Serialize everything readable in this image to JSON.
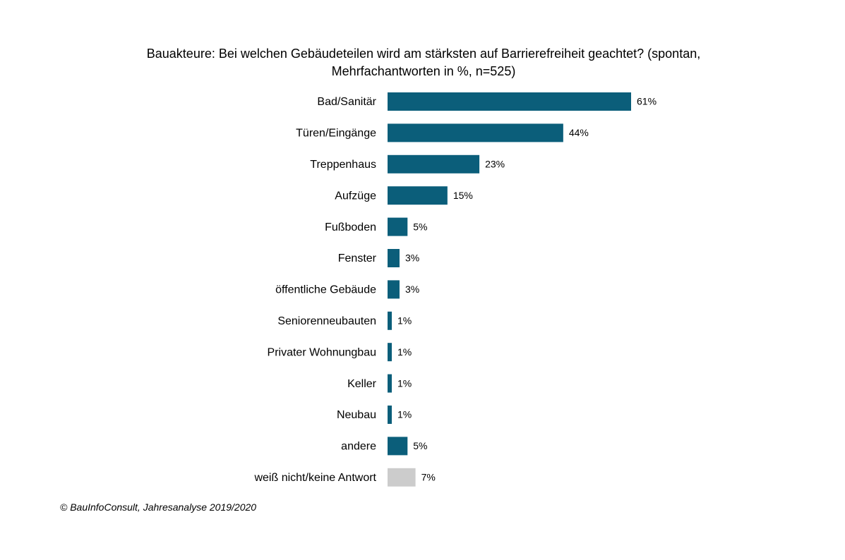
{
  "chart_data": {
    "type": "bar",
    "orientation": "horizontal",
    "title": "Bauakteure: Bei welchen Gebäudeteilen wird am stärksten auf Barrierefreiheit geachtet? (spontan, Mehrfachantworten in %, n=525)",
    "title_lines": [
      "Bauakteure: Bei welchen Gebäudeteilen wird am stärksten auf Barrierefreiheit geachtet? (spontan,",
      "Mehrfachantworten in %, n=525)"
    ],
    "categories": [
      "Bad/Sanitär",
      "Türen/Eingänge",
      "Treppenhaus",
      "Aufzüge",
      "Fußboden",
      "Fenster",
      "öffentliche Gebäude",
      "Seniorenneubauten",
      "Privater Wohnungbau",
      "Keller",
      "Neubau",
      "andere",
      "weiß nicht/keine Antwort"
    ],
    "values": [
      61,
      44,
      23,
      15,
      5,
      3,
      3,
      1,
      1,
      1,
      1,
      5,
      7
    ],
    "value_labels": [
      "61%",
      "44%",
      "23%",
      "15%",
      "5%",
      "3%",
      "3%",
      "1%",
      "1%",
      "1%",
      "1%",
      "5%",
      "7%"
    ],
    "unit": "%",
    "xlim": [
      0,
      61
    ],
    "grid": false,
    "legend": "none",
    "colors": {
      "bar": "#0b5e7a",
      "no_answer_bar": "#cccccc"
    },
    "xlabel": "",
    "ylabel": ""
  },
  "source": "© BauInfoConsult, Jahresanalyse 2019/2020"
}
